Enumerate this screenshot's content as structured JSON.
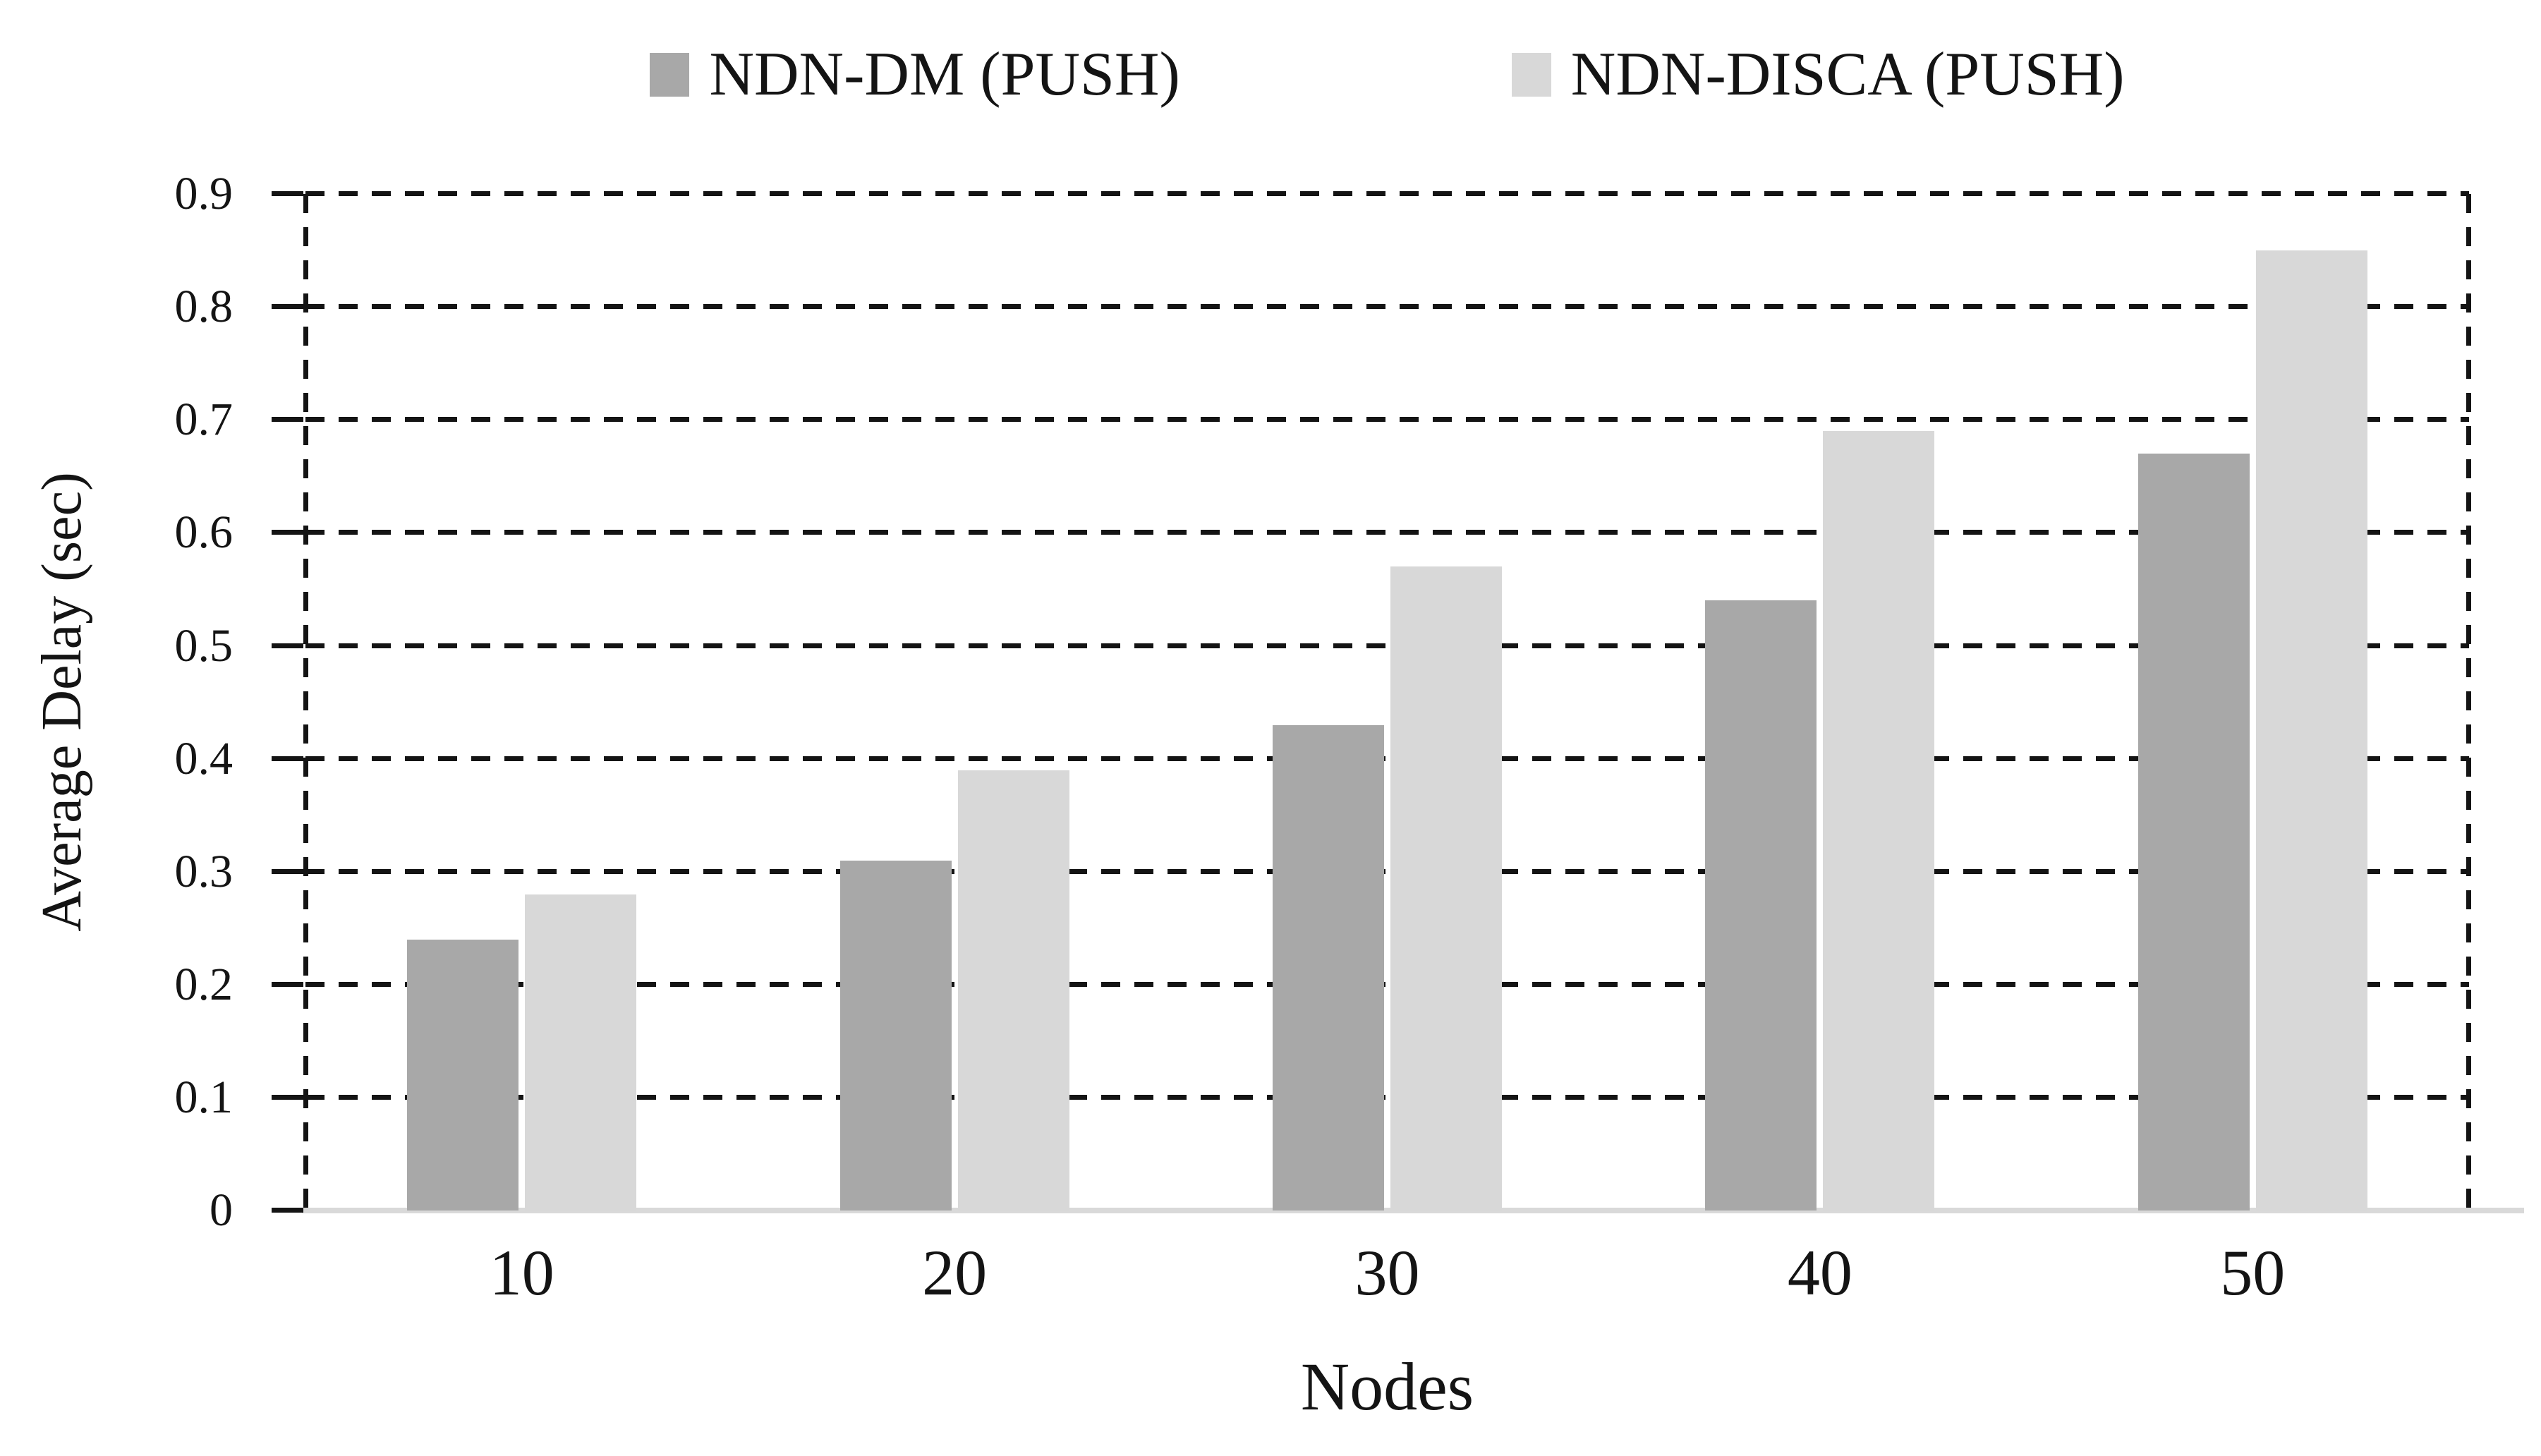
{
  "legend": {
    "items": [
      {
        "label": "NDN-DM (PUSH)",
        "color": "#a8a8a8"
      },
      {
        "label": "NDN-DISCA (PUSH)",
        "color": "#d8d8d8"
      }
    ]
  },
  "y_axis": {
    "title": "Average Delay (sec)",
    "tick_labels": [
      "0",
      "0.1",
      "0.2",
      "0.3",
      "0.4",
      "0.5",
      "0.6",
      "0.7",
      "0.8",
      "0.9"
    ],
    "tick_values": [
      0,
      0.1,
      0.2,
      0.3,
      0.4,
      0.5,
      0.6,
      0.7,
      0.8,
      0.9
    ]
  },
  "x_axis": {
    "title": "Nodes",
    "tick_labels": [
      "10",
      "20",
      "30",
      "40",
      "50"
    ]
  },
  "style": {
    "gridline_color": "#141414",
    "baseline_color": "#d9d9d9",
    "background": "#ffffff"
  },
  "chart_data": {
    "type": "bar",
    "title": "",
    "xlabel": "Nodes",
    "ylabel": "Average Delay (sec)",
    "categories": [
      "10",
      "20",
      "30",
      "40",
      "50"
    ],
    "series": [
      {
        "name": "NDN-DM (PUSH)",
        "color": "#a8a8a8",
        "values": [
          0.24,
          0.31,
          0.43,
          0.54,
          0.67
        ]
      },
      {
        "name": "NDN-DISCA (PUSH)",
        "color": "#d8d8d8",
        "values": [
          0.28,
          0.39,
          0.57,
          0.69,
          0.85
        ]
      }
    ],
    "ylim": [
      0,
      0.9
    ],
    "y_tick_step": 0.1,
    "grid": "horizontal-dashed",
    "legend_position": "top-center"
  }
}
